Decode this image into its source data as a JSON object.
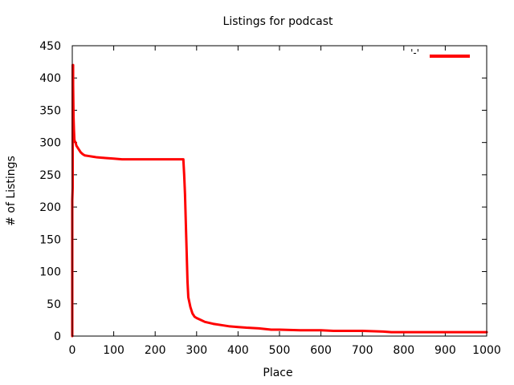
{
  "chart_data": {
    "type": "line",
    "title": "Listings for podcast",
    "xlabel": "Place",
    "ylabel": "# of Listings",
    "xlim": [
      0,
      1000
    ],
    "ylim": [
      0,
      450
    ],
    "xticks": [
      0,
      100,
      200,
      300,
      400,
      500,
      600,
      700,
      800,
      900,
      1000
    ],
    "yticks": [
      0,
      50,
      100,
      150,
      200,
      250,
      300,
      350,
      400,
      450
    ],
    "grid": false,
    "legend": {
      "placement": "top-right",
      "entries": [
        {
          "label": "'-'",
          "color": "#ff0000"
        }
      ]
    },
    "series": [
      {
        "color": "#ff0000",
        "x": [
          0,
          0,
          1,
          1,
          2,
          2,
          3,
          4,
          5,
          6,
          8,
          10,
          15,
          20,
          25,
          30,
          40,
          50,
          60,
          80,
          100,
          120,
          150,
          200,
          250,
          268,
          270,
          272,
          274,
          276,
          278,
          280,
          285,
          290,
          295,
          300,
          310,
          320,
          340,
          360,
          380,
          400,
          420,
          450,
          480,
          500,
          550,
          600,
          630,
          650,
          700,
          750,
          770,
          800,
          850,
          900,
          950,
          1000
        ],
        "y": [
          0,
          210,
          230,
          420,
          420,
          390,
          340,
          320,
          305,
          302,
          300,
          295,
          290,
          285,
          282,
          280,
          279,
          278,
          277,
          276,
          275,
          274,
          274,
          274,
          274,
          274,
          250,
          220,
          175,
          130,
          85,
          60,
          45,
          35,
          30,
          28,
          25,
          22,
          19,
          17,
          15,
          14,
          13,
          12,
          10,
          10,
          9,
          9,
          8,
          8,
          8,
          7,
          6,
          6,
          6,
          6,
          6,
          6
        ]
      }
    ]
  }
}
